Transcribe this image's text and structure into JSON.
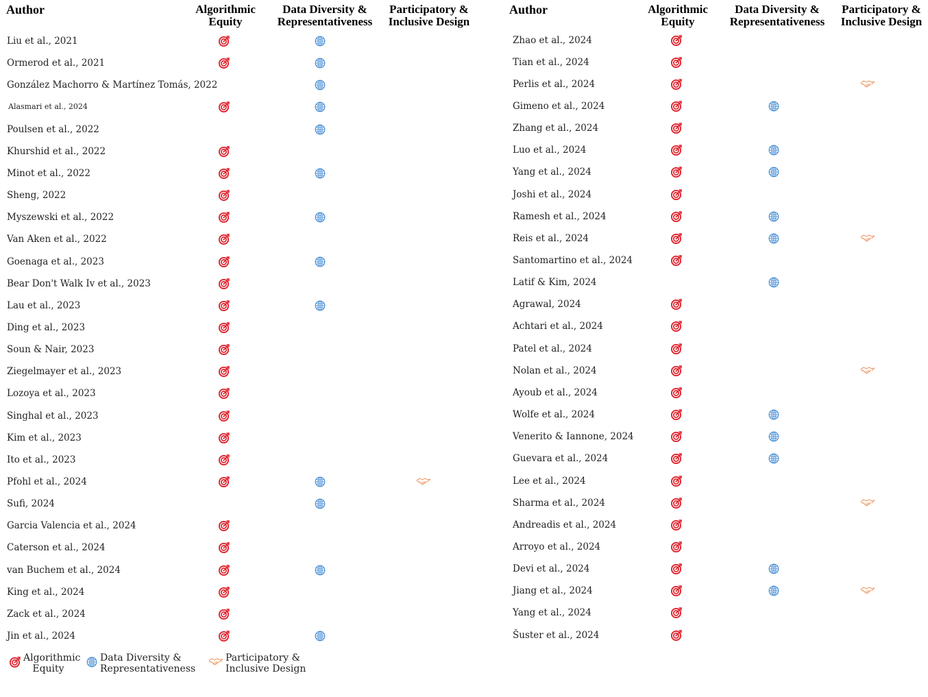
{
  "columns": {
    "author": "Author",
    "algorithmic_equity": [
      "Algorithmic",
      "Equity"
    ],
    "data_diversity": [
      "Data Diversity &",
      "Representativeness"
    ],
    "participatory": [
      "Participatory &",
      "Inclusive Design"
    ]
  },
  "icons": {
    "algorithmic_equity": "target-icon",
    "data_diversity": "globe-icon",
    "participatory": "handshake-icon"
  },
  "colors": {
    "target": "#e0232d",
    "globe": "#4a8fd4",
    "handshake": "#f0a070"
  },
  "left_rows": [
    {
      "author": "Liu et al., 2021",
      "ae": true,
      "dd": true,
      "pi": false
    },
    {
      "author": "Ormerod et al., 2021",
      "ae": true,
      "dd": true,
      "pi": false
    },
    {
      "author": "González Machorro & Martínez Tomás, 2022",
      "ae": false,
      "dd": true,
      "pi": false
    },
    {
      "author": "Alasmari et al., 2024",
      "ae": true,
      "dd": true,
      "pi": false,
      "small": true
    },
    {
      "author": "Poulsen et al., 2022",
      "ae": false,
      "dd": true,
      "pi": false
    },
    {
      "author": "Khurshid et al., 2022",
      "ae": true,
      "dd": false,
      "pi": false
    },
    {
      "author": "Minot et al., 2022",
      "ae": true,
      "dd": true,
      "pi": false
    },
    {
      "author": "Sheng, 2022",
      "ae": true,
      "dd": false,
      "pi": false
    },
    {
      "author": "Myszewski et al., 2022",
      "ae": true,
      "dd": true,
      "pi": false
    },
    {
      "author": "Van Aken et al., 2022",
      "ae": true,
      "dd": false,
      "pi": false
    },
    {
      "author": "Goenaga et al., 2023",
      "ae": true,
      "dd": true,
      "pi": false
    },
    {
      "author": "Bear Don't Walk Iv et al., 2023",
      "ae": true,
      "dd": false,
      "pi": false
    },
    {
      "author": "Lau et al., 2023",
      "ae": true,
      "dd": true,
      "pi": false
    },
    {
      "author": "Ding et al., 2023",
      "ae": true,
      "dd": false,
      "pi": false
    },
    {
      "author": "Soun & Nair, 2023",
      "ae": true,
      "dd": false,
      "pi": false
    },
    {
      "author": "Ziegelmayer et al., 2023",
      "ae": true,
      "dd": false,
      "pi": false
    },
    {
      "author": "Lozoya et al., 2023",
      "ae": true,
      "dd": false,
      "pi": false
    },
    {
      "author": "Singhal et al., 2023",
      "ae": true,
      "dd": false,
      "pi": false
    },
    {
      "author": "Kim et al., 2023",
      "ae": true,
      "dd": false,
      "pi": false
    },
    {
      "author": "Ito et al., 2023",
      "ae": true,
      "dd": false,
      "pi": false
    },
    {
      "author": "Pfohl et al., 2024",
      "ae": true,
      "dd": true,
      "pi": true
    },
    {
      "author": "Sufi, 2024",
      "ae": false,
      "dd": true,
      "pi": false
    },
    {
      "author": "Garcia Valencia et al., 2024",
      "ae": true,
      "dd": false,
      "pi": false
    },
    {
      "author": "Caterson et al., 2024",
      "ae": true,
      "dd": false,
      "pi": false
    },
    {
      "author": "van Buchem et al., 2024",
      "ae": true,
      "dd": true,
      "pi": false
    },
    {
      "author": "King et al., 2024",
      "ae": true,
      "dd": false,
      "pi": false
    },
    {
      "author": "Zack et al., 2024",
      "ae": true,
      "dd": false,
      "pi": false
    },
    {
      "author": "Jin et al., 2024",
      "ae": true,
      "dd": true,
      "pi": false
    }
  ],
  "right_rows": [
    {
      "author": "Zhao et al., 2024",
      "ae": true,
      "dd": false,
      "pi": false
    },
    {
      "author": "Tian et al., 2024",
      "ae": true,
      "dd": false,
      "pi": false
    },
    {
      "author": "Perlis et al., 2024",
      "ae": true,
      "dd": false,
      "pi": true
    },
    {
      "author": "Gimeno et al., 2024",
      "ae": true,
      "dd": true,
      "pi": false
    },
    {
      "author": "Zhang et al., 2024",
      "ae": true,
      "dd": false,
      "pi": false
    },
    {
      "author": "Luo et al., 2024",
      "ae": true,
      "dd": true,
      "pi": false
    },
    {
      "author": "Yang et al., 2024",
      "ae": true,
      "dd": true,
      "pi": false
    },
    {
      "author": "Joshi et al., 2024",
      "ae": true,
      "dd": false,
      "pi": false
    },
    {
      "author": "Ramesh et al., 2024",
      "ae": true,
      "dd": true,
      "pi": false
    },
    {
      "author": "Reis et al., 2024",
      "ae": true,
      "dd": true,
      "pi": true
    },
    {
      "author": "Santomartino et al., 2024",
      "ae": true,
      "dd": false,
      "pi": false
    },
    {
      "author": "Latif & Kim, 2024",
      "ae": false,
      "dd": true,
      "pi": false
    },
    {
      "author": "Agrawal, 2024",
      "ae": true,
      "dd": false,
      "pi": false
    },
    {
      "author": "Achtari et al., 2024",
      "ae": true,
      "dd": false,
      "pi": false
    },
    {
      "author": "Patel et al., 2024",
      "ae": true,
      "dd": false,
      "pi": false
    },
    {
      "author": "Nolan et al., 2024",
      "ae": true,
      "dd": false,
      "pi": true
    },
    {
      "author": "Ayoub et al., 2024",
      "ae": true,
      "dd": false,
      "pi": false
    },
    {
      "author": "Wolfe et al., 2024",
      "ae": true,
      "dd": true,
      "pi": false
    },
    {
      "author": "Venerito & Iannone, 2024",
      "ae": true,
      "dd": true,
      "pi": false
    },
    {
      "author": "Guevara et al., 2024",
      "ae": true,
      "dd": true,
      "pi": false
    },
    {
      "author": "Lee et al., 2024",
      "ae": true,
      "dd": false,
      "pi": false
    },
    {
      "author": "Sharma et al., 2024",
      "ae": true,
      "dd": false,
      "pi": true
    },
    {
      "author": "Andreadis et al., 2024",
      "ae": true,
      "dd": false,
      "pi": false
    },
    {
      "author": "Arroyo et al., 2024",
      "ae": true,
      "dd": false,
      "pi": false
    },
    {
      "author": "Devi et al., 2024",
      "ae": true,
      "dd": true,
      "pi": false
    },
    {
      "author": "Jiang et al., 2024",
      "ae": true,
      "dd": true,
      "pi": true
    },
    {
      "author": "Yang et al., 2024",
      "ae": true,
      "dd": false,
      "pi": false
    },
    {
      "author": "Šuster et al., 2024",
      "ae": true,
      "dd": false,
      "pi": false
    }
  ],
  "legend": {
    "algorithmic_equity": [
      "Algorithmic",
      "Equity"
    ],
    "data_diversity": [
      "Data Diversity &",
      "Representativeness"
    ],
    "participatory": [
      "Participatory &",
      "Inclusive Design"
    ]
  }
}
